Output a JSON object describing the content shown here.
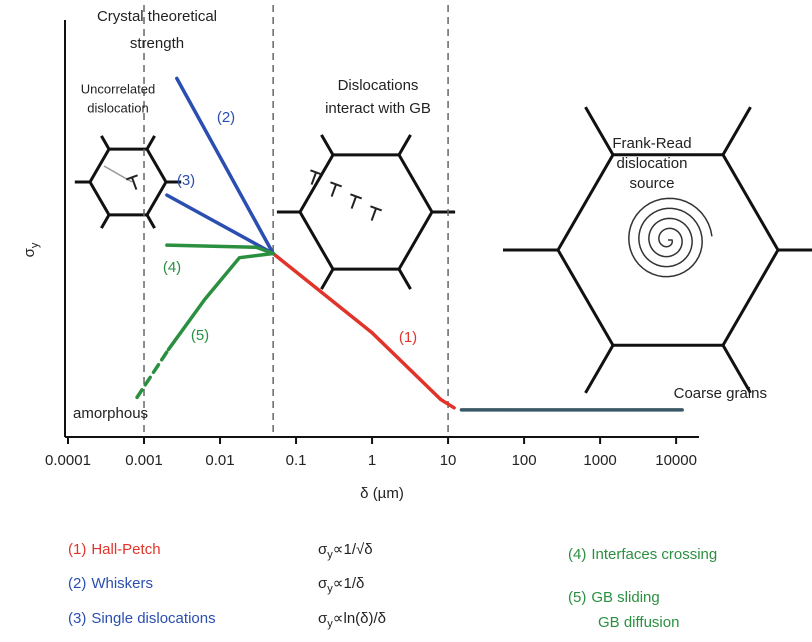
{
  "chart_data": {
    "type": "line",
    "x_label": "δ (µm)",
    "y_label": [
      "σ",
      "y"
    ],
    "xlog": true,
    "xlim": [
      0.0001,
      20000
    ],
    "ylim": [
      0,
      10
    ],
    "xticks": [
      0.0001,
      0.001,
      0.01,
      0.1,
      1,
      10,
      100,
      1000,
      10000
    ],
    "vlines": [
      0.001,
      0.05,
      10
    ],
    "annotations": [
      {
        "lines": [
          "Crystal theoretical",
          "strength"
        ]
      },
      {
        "lines": [
          "Uncorrelated",
          "dislocation"
        ]
      },
      {
        "lines": [
          "Dislocations",
          "interact with GB"
        ]
      },
      {
        "lines": [
          "Frank-Read",
          "dislocation",
          "source"
        ]
      }
    ],
    "series": [
      {
        "name": "Hall-Petch",
        "tag": "(1)",
        "color": "#e0342a",
        "formula": [
          "σ",
          "y",
          "∝1/√δ"
        ],
        "x": [
          0.05,
          1,
          8,
          12
        ],
        "values": [
          4.4,
          2.5,
          0.9,
          0.7
        ]
      },
      {
        "name": "Whiskers",
        "tag": "(2)",
        "color": "#2a4fb0",
        "formula": [
          "σ",
          "y",
          "∝1/δ"
        ],
        "x": [
          0.0027,
          0.05
        ],
        "values": [
          8.6,
          4.4
        ]
      },
      {
        "name": "Single dislocations",
        "tag": "(3)",
        "color": "#2a4fb0",
        "formula": [
          "σ",
          "y",
          "∝ln(δ)/δ"
        ],
        "x": [
          0.002,
          0.05
        ],
        "values": [
          5.8,
          4.4
        ]
      },
      {
        "name": "Interfaces crossing",
        "tag": "(4)",
        "color": "#2a9040",
        "x": [
          0.002,
          0.03,
          0.05
        ],
        "values": [
          4.6,
          4.55,
          4.4
        ]
      },
      {
        "name": "GB sliding",
        "note": "GB diffusion",
        "tag": "(5)",
        "color": "#2a9040",
        "x": [
          0.0021,
          0.0063,
          0.018,
          0.05
        ],
        "values": [
          2.1,
          3.3,
          4.3,
          4.4
        ]
      },
      {
        "name": "amorphous",
        "color": "#2a9040",
        "dashed": true,
        "x": [
          0.00081,
          0.0021
        ],
        "values": [
          0.95,
          2.1
        ]
      },
      {
        "name": "Coarse grains",
        "color": "#3b5866",
        "x": [
          15,
          12000
        ],
        "values": [
          0.65,
          0.65
        ]
      }
    ]
  }
}
